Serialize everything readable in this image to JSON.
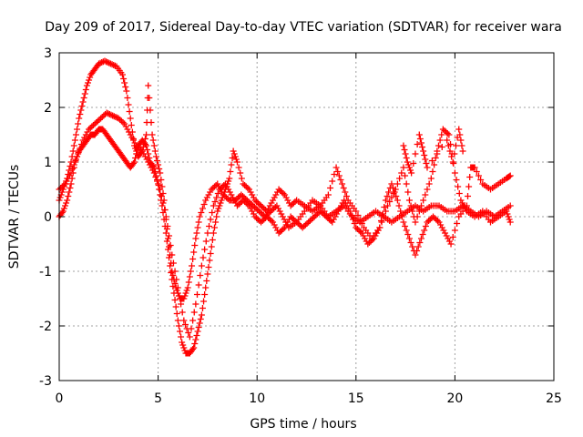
{
  "chart_data": {
    "type": "scatter",
    "title": "Day 209 of 2017, Sidereal Day-to-day VTEC variation (SDTVAR) for receiver wara",
    "xlabel": "GPS time / hours",
    "ylabel": "SDTVAR / TECUs",
    "xlim": [
      0,
      25
    ],
    "ylim": [
      -3,
      3
    ],
    "x_ticks": [
      "0",
      "5",
      "10",
      "15",
      "20",
      "25"
    ],
    "y_ticks": [
      "-3",
      "-2",
      "-1",
      "0",
      "1",
      "2",
      "3"
    ],
    "grid": true,
    "marker": "+",
    "color": "#ff0000",
    "series": [
      {
        "points": [
          [
            0.0,
            0.3
          ],
          [
            0.2,
            0.5
          ],
          [
            0.4,
            0.7
          ],
          [
            0.6,
            1.0
          ],
          [
            0.8,
            1.4
          ],
          [
            1.0,
            1.8
          ],
          [
            1.2,
            2.1
          ],
          [
            1.4,
            2.4
          ],
          [
            1.6,
            2.6
          ],
          [
            1.8,
            2.7
          ],
          [
            2.0,
            2.8
          ],
          [
            2.3,
            2.85
          ],
          [
            2.6,
            2.8
          ],
          [
            2.9,
            2.75
          ],
          [
            3.2,
            2.6
          ],
          [
            3.4,
            2.3
          ],
          [
            3.6,
            1.8
          ],
          [
            3.8,
            1.3
          ],
          [
            4.0,
            1.1
          ],
          [
            4.2,
            1.2
          ],
          [
            4.4,
            1.5
          ],
          [
            4.5,
            2.4
          ],
          [
            4.7,
            1.5
          ],
          [
            4.9,
            1.1
          ],
          [
            5.1,
            0.8
          ],
          [
            5.3,
            0.3
          ],
          [
            5.5,
            -0.4
          ],
          [
            5.7,
            -1.0
          ],
          [
            5.9,
            -1.3
          ],
          [
            6.1,
            -1.5
          ],
          [
            6.3,
            -1.5
          ],
          [
            6.5,
            -1.3
          ],
          [
            6.7,
            -0.9
          ],
          [
            6.9,
            -0.4
          ],
          [
            7.1,
            0.0
          ],
          [
            7.4,
            0.3
          ],
          [
            7.7,
            0.5
          ],
          [
            8.0,
            0.6
          ],
          [
            8.3,
            0.4
          ],
          [
            8.6,
            0.3
          ],
          [
            8.9,
            0.3
          ],
          [
            9.2,
            0.4
          ],
          [
            9.5,
            0.3
          ],
          [
            9.8,
            0.2
          ],
          [
            10.1,
            0.1
          ],
          [
            10.4,
            0.0
          ],
          [
            10.7,
            0.1
          ],
          [
            11.0,
            0.2
          ],
          [
            11.3,
            0.0
          ],
          [
            11.6,
            -0.2
          ],
          [
            12.0,
            -0.1
          ],
          [
            12.4,
            0.1
          ],
          [
            12.8,
            0.3
          ],
          [
            13.2,
            0.2
          ],
          [
            13.6,
            0.0
          ],
          [
            14.0,
            0.1
          ],
          [
            14.4,
            0.2
          ],
          [
            14.8,
            0.0
          ],
          [
            15.2,
            -0.1
          ],
          [
            15.6,
            0.0
          ],
          [
            16.0,
            0.1
          ],
          [
            16.4,
            0.0
          ],
          [
            16.8,
            -0.1
          ],
          [
            17.2,
            0.0
          ],
          [
            17.6,
            0.1
          ],
          [
            18.0,
            0.2
          ],
          [
            18.4,
            0.1
          ],
          [
            18.8,
            0.2
          ],
          [
            19.2,
            0.2
          ],
          [
            19.6,
            0.1
          ],
          [
            20.0,
            0.1
          ],
          [
            20.4,
            0.2
          ],
          [
            20.8,
            0.1
          ],
          [
            21.2,
            0.0
          ],
          [
            21.6,
            0.1
          ],
          [
            22.0,
            0.0
          ],
          [
            22.4,
            0.1
          ],
          [
            22.8,
            0.2
          ]
        ]
      },
      {
        "points": [
          [
            0.0,
            0.0
          ],
          [
            0.2,
            0.1
          ],
          [
            0.4,
            0.3
          ],
          [
            0.6,
            0.6
          ],
          [
            0.8,
            1.0
          ],
          [
            1.0,
            1.2
          ],
          [
            1.2,
            1.3
          ],
          [
            1.4,
            1.4
          ],
          [
            1.6,
            1.5
          ],
          [
            1.8,
            1.5
          ],
          [
            2.0,
            1.6
          ],
          [
            2.2,
            1.6
          ],
          [
            2.4,
            1.5
          ],
          [
            2.6,
            1.4
          ],
          [
            2.8,
            1.3
          ],
          [
            3.0,
            1.2
          ],
          [
            3.2,
            1.1
          ],
          [
            3.4,
            1.0
          ],
          [
            3.6,
            0.9
          ],
          [
            3.8,
            1.0
          ],
          [
            4.0,
            1.3
          ],
          [
            4.2,
            1.4
          ],
          [
            4.4,
            1.3
          ],
          [
            4.6,
            1.0
          ],
          [
            4.8,
            0.9
          ],
          [
            5.0,
            0.6
          ],
          [
            5.2,
            0.2
          ],
          [
            5.4,
            -0.3
          ],
          [
            5.6,
            -0.9
          ],
          [
            5.8,
            -1.4
          ],
          [
            6.0,
            -1.9
          ],
          [
            6.2,
            -2.3
          ],
          [
            6.4,
            -2.5
          ],
          [
            6.6,
            -2.5
          ],
          [
            6.8,
            -2.4
          ],
          [
            7.0,
            -2.1
          ],
          [
            7.2,
            -1.8
          ],
          [
            7.4,
            -1.3
          ],
          [
            7.6,
            -0.8
          ],
          [
            7.8,
            -0.3
          ],
          [
            8.0,
            0.1
          ],
          [
            8.2,
            0.3
          ],
          [
            8.4,
            0.5
          ],
          [
            8.6,
            0.7
          ],
          [
            8.8,
            1.2
          ],
          [
            9.0,
            1.0
          ],
          [
            9.3,
            0.6
          ],
          [
            9.6,
            0.5
          ],
          [
            9.9,
            0.3
          ],
          [
            10.2,
            0.2
          ],
          [
            10.5,
            0.1
          ],
          [
            10.8,
            0.3
          ],
          [
            11.1,
            0.5
          ],
          [
            11.4,
            0.4
          ],
          [
            11.7,
            0.2
          ],
          [
            12.0,
            0.3
          ],
          [
            12.4,
            0.2
          ],
          [
            12.8,
            0.1
          ],
          [
            13.2,
            0.2
          ],
          [
            13.6,
            0.4
          ],
          [
            14.0,
            0.9
          ],
          [
            14.3,
            0.6
          ],
          [
            14.6,
            0.3
          ],
          [
            15.0,
            0.1
          ],
          [
            15.4,
            -0.2
          ],
          [
            15.8,
            -0.4
          ],
          [
            16.2,
            -0.2
          ],
          [
            16.6,
            0.2
          ],
          [
            17.0,
            0.5
          ],
          [
            17.4,
            0.9
          ],
          [
            17.7,
            0.3
          ],
          [
            18.0,
            -0.1
          ],
          [
            18.4,
            0.3
          ],
          [
            18.8,
            0.7
          ],
          [
            19.1,
            1.2
          ],
          [
            19.4,
            1.6
          ],
          [
            19.7,
            1.5
          ],
          [
            20.0,
            0.8
          ],
          [
            20.3,
            0.3
          ],
          [
            20.6,
            0.1
          ],
          [
            21.0,
            0.0
          ],
          [
            21.4,
            0.1
          ],
          [
            21.8,
            -0.1
          ],
          [
            22.2,
            0.0
          ],
          [
            22.6,
            0.1
          ],
          [
            22.8,
            -0.1
          ]
        ]
      },
      {
        "points": [
          [
            0.0,
            0.5
          ],
          [
            0.3,
            0.6
          ],
          [
            0.6,
            0.8
          ],
          [
            0.9,
            1.1
          ],
          [
            1.2,
            1.4
          ],
          [
            1.5,
            1.6
          ],
          [
            1.8,
            1.7
          ],
          [
            2.1,
            1.8
          ],
          [
            2.4,
            1.9
          ],
          [
            2.7,
            1.85
          ],
          [
            3.0,
            1.8
          ],
          [
            3.3,
            1.7
          ],
          [
            3.6,
            1.5
          ],
          [
            3.9,
            1.3
          ],
          [
            4.2,
            1.2
          ],
          [
            4.5,
            1.0
          ],
          [
            4.8,
            0.8
          ],
          [
            5.1,
            0.5
          ],
          [
            5.4,
            0.0
          ],
          [
            5.7,
            -0.7
          ],
          [
            6.0,
            -1.3
          ],
          [
            6.3,
            -1.9
          ],
          [
            6.6,
            -2.2
          ],
          [
            6.9,
            -1.6
          ],
          [
            7.2,
            -0.9
          ],
          [
            7.5,
            -0.3
          ],
          [
            7.8,
            0.2
          ],
          [
            8.1,
            0.5
          ],
          [
            8.4,
            0.6
          ],
          [
            8.7,
            0.4
          ],
          [
            9.0,
            0.2
          ],
          [
            9.3,
            0.3
          ],
          [
            9.6,
            0.2
          ],
          [
            9.9,
            0.0
          ],
          [
            10.2,
            -0.1
          ],
          [
            10.5,
            0.0
          ],
          [
            10.8,
            -0.1
          ],
          [
            11.1,
            -0.3
          ],
          [
            11.4,
            -0.2
          ],
          [
            11.7,
            0.0
          ],
          [
            12.0,
            -0.1
          ],
          [
            12.3,
            -0.2
          ],
          [
            12.6,
            -0.1
          ],
          [
            12.9,
            0.0
          ],
          [
            13.2,
            0.1
          ],
          [
            13.5,
            0.0
          ],
          [
            13.8,
            -0.1
          ],
          [
            14.1,
            0.1
          ],
          [
            14.4,
            0.3
          ],
          [
            14.7,
            0.1
          ],
          [
            15.0,
            -0.2
          ],
          [
            15.3,
            -0.3
          ],
          [
            15.6,
            -0.5
          ],
          [
            15.9,
            -0.4
          ],
          [
            16.2,
            -0.2
          ],
          [
            16.5,
            0.3
          ],
          [
            16.8,
            0.6
          ],
          [
            17.1,
            0.3
          ],
          [
            17.4,
            -0.1
          ],
          [
            17.7,
            -0.4
          ],
          [
            18.0,
            -0.7
          ],
          [
            18.3,
            -0.4
          ],
          [
            18.6,
            -0.1
          ],
          [
            18.9,
            0.0
          ],
          [
            19.2,
            -0.1
          ],
          [
            19.5,
            -0.3
          ],
          [
            19.8,
            -0.5
          ],
          [
            20.2,
            0.0
          ],
          [
            20.6,
            0.2
          ],
          [
            20.8,
            0.9
          ],
          [
            21.0,
            0.9
          ],
          [
            21.4,
            0.6
          ],
          [
            21.8,
            0.5
          ],
          [
            22.2,
            0.6
          ],
          [
            22.6,
            0.7
          ],
          [
            22.8,
            0.75
          ]
        ]
      },
      {
        "points": [
          [
            17.4,
            1.3
          ],
          [
            17.6,
            1.0
          ],
          [
            17.8,
            0.8
          ],
          [
            18.2,
            1.5
          ],
          [
            18.4,
            1.2
          ],
          [
            18.6,
            0.9
          ],
          [
            19.6,
            1.4
          ],
          [
            19.9,
            1.0
          ],
          [
            20.2,
            1.6
          ],
          [
            20.4,
            1.2
          ]
        ]
      }
    ]
  }
}
